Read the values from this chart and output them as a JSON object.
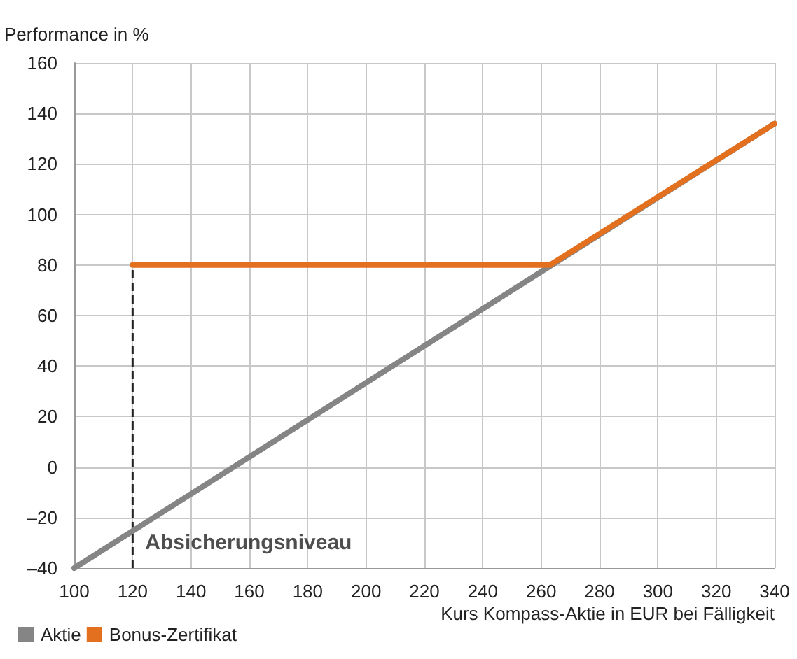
{
  "chart_data": {
    "type": "line",
    "ylabel": "Performance in %",
    "xlabel": "Kurs Kompass-Aktie in EUR bei Fälligkeit",
    "series": [
      {
        "name": "Aktie",
        "color": "#858585",
        "x": [
          100,
          340
        ],
        "values": [
          -40,
          136
        ]
      },
      {
        "name": "Bonus-Zertifikat",
        "color": "#e2701f",
        "x": [
          120,
          263,
          340
        ],
        "values": [
          80,
          80,
          136
        ]
      }
    ],
    "xlim": [
      100,
      340
    ],
    "xticks": [
      100,
      120,
      140,
      160,
      180,
      200,
      220,
      240,
      260,
      280,
      300,
      320,
      340
    ],
    "ylim": [
      -40,
      160
    ],
    "yticks": [
      {
        "value": -40,
        "label": "–40"
      },
      {
        "value": -20,
        "label": "–20"
      },
      0,
      20,
      40,
      60,
      80,
      100,
      120,
      140,
      160
    ],
    "ref_lines": [
      {
        "axis": "x",
        "value": 120,
        "label": "Absicherungsniveau",
        "color": "#222222",
        "line_style": "dashed"
      }
    ],
    "grid": true,
    "legend": "bottom left",
    "marker": "none",
    "line_style": "solid"
  }
}
